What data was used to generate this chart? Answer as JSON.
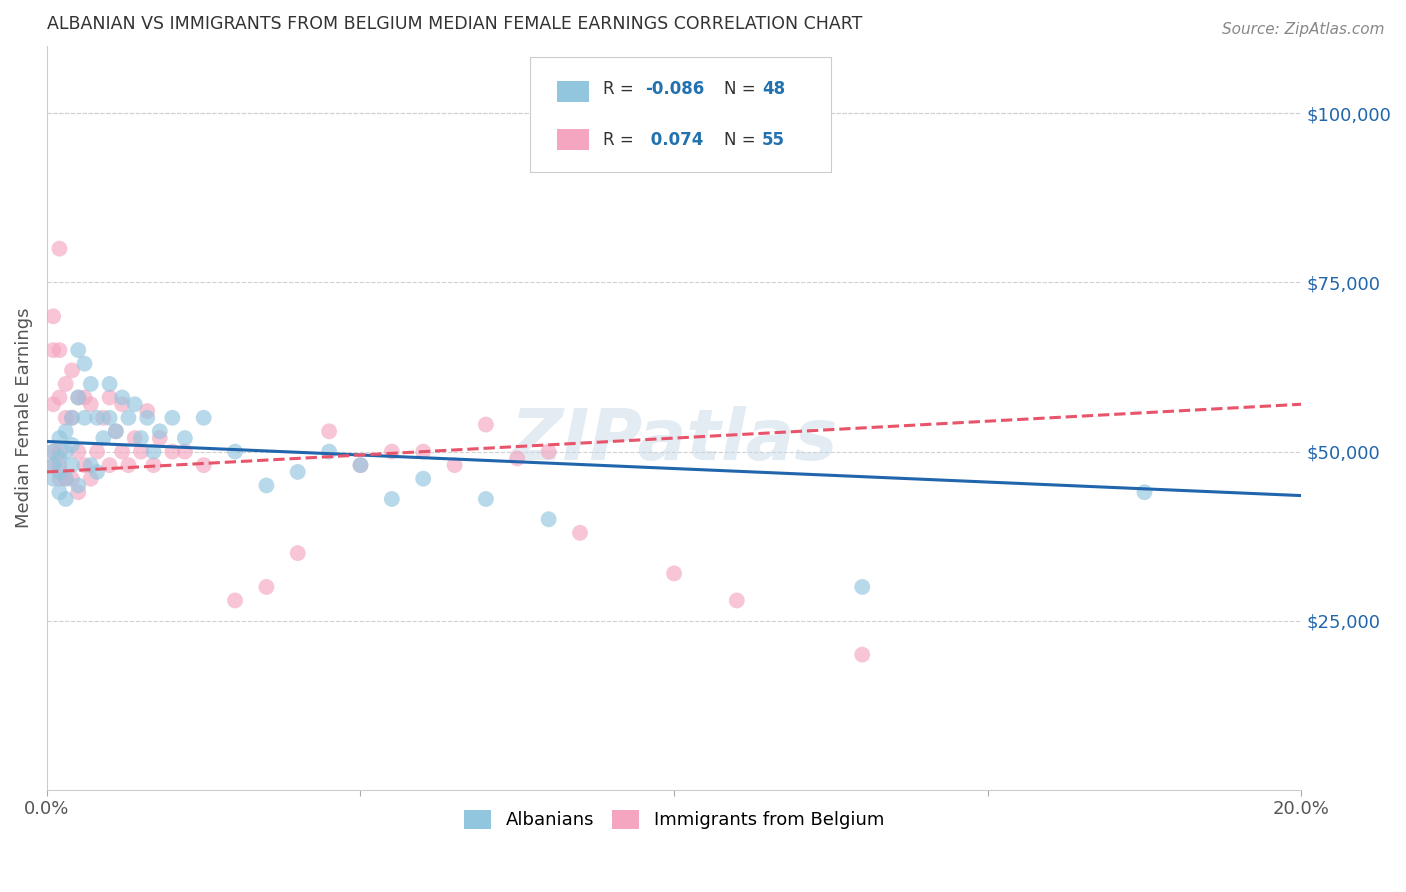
{
  "title": "ALBANIAN VS IMMIGRANTS FROM BELGIUM MEDIAN FEMALE EARNINGS CORRELATION CHART",
  "source": "Source: ZipAtlas.com",
  "ylabel": "Median Female Earnings",
  "xlim": [
    0,
    0.2
  ],
  "ylim": [
    0,
    110000
  ],
  "xticks": [
    0.0,
    0.05,
    0.1,
    0.15,
    0.2
  ],
  "xtick_labels": [
    "0.0%",
    "",
    "",
    "",
    "20.0%"
  ],
  "ytick_labels_right": [
    "$25,000",
    "$50,000",
    "$75,000",
    "$100,000"
  ],
  "ytick_positions_right": [
    25000,
    50000,
    75000,
    100000
  ],
  "legend_labels": [
    "Albanians",
    "Immigrants from Belgium"
  ],
  "legend_R_alb": "-0.086",
  "legend_R_bel": "0.074",
  "legend_N_alb": "48",
  "legend_N_bel": "55",
  "blue_color": "#92c5de",
  "pink_color": "#f4a6c0",
  "blue_line_color": "#2166ac",
  "pink_line_color": "#e8546a",
  "watermark": "ZIPatlas",
  "blue_trend_x0": 0.0,
  "blue_trend_y0": 51500,
  "blue_trend_x1": 0.2,
  "blue_trend_y1": 43500,
  "pink_trend_x0": 0.0,
  "pink_trend_y0": 47000,
  "pink_trend_x1": 0.2,
  "pink_trend_y1": 57000,
  "albanians_x": [
    0.001,
    0.001,
    0.001,
    0.002,
    0.002,
    0.002,
    0.002,
    0.003,
    0.003,
    0.003,
    0.003,
    0.004,
    0.004,
    0.004,
    0.005,
    0.005,
    0.005,
    0.006,
    0.006,
    0.007,
    0.007,
    0.008,
    0.008,
    0.009,
    0.01,
    0.01,
    0.011,
    0.012,
    0.013,
    0.014,
    0.015,
    0.016,
    0.017,
    0.018,
    0.02,
    0.022,
    0.025,
    0.03,
    0.035,
    0.04,
    0.045,
    0.05,
    0.055,
    0.06,
    0.07,
    0.08,
    0.13,
    0.175
  ],
  "albanians_y": [
    50000,
    48000,
    46000,
    52000,
    49000,
    47000,
    44000,
    53000,
    50000,
    46000,
    43000,
    55000,
    51000,
    48000,
    65000,
    58000,
    45000,
    63000,
    55000,
    60000,
    48000,
    55000,
    47000,
    52000,
    60000,
    55000,
    53000,
    58000,
    55000,
    57000,
    52000,
    55000,
    50000,
    53000,
    55000,
    52000,
    55000,
    50000,
    45000,
    47000,
    50000,
    48000,
    43000,
    46000,
    43000,
    40000,
    30000,
    44000
  ],
  "belgium_x": [
    0.001,
    0.001,
    0.001,
    0.001,
    0.001,
    0.002,
    0.002,
    0.002,
    0.002,
    0.002,
    0.002,
    0.003,
    0.003,
    0.003,
    0.004,
    0.004,
    0.004,
    0.005,
    0.005,
    0.005,
    0.006,
    0.006,
    0.007,
    0.007,
    0.008,
    0.009,
    0.01,
    0.01,
    0.011,
    0.012,
    0.012,
    0.013,
    0.014,
    0.015,
    0.016,
    0.017,
    0.018,
    0.02,
    0.022,
    0.025,
    0.03,
    0.035,
    0.04,
    0.045,
    0.05,
    0.055,
    0.06,
    0.065,
    0.07,
    0.075,
    0.08,
    0.085,
    0.1,
    0.11,
    0.13
  ],
  "belgium_y": [
    70000,
    65000,
    57000,
    50000,
    48000,
    80000,
    65000,
    58000,
    50000,
    48000,
    46000,
    60000,
    55000,
    46000,
    62000,
    55000,
    46000,
    58000,
    50000,
    44000,
    58000,
    48000,
    57000,
    46000,
    50000,
    55000,
    58000,
    48000,
    53000,
    57000,
    50000,
    48000,
    52000,
    50000,
    56000,
    48000,
    52000,
    50000,
    50000,
    48000,
    28000,
    30000,
    35000,
    53000,
    48000,
    50000,
    50000,
    48000,
    54000,
    49000,
    50000,
    38000,
    32000,
    28000,
    20000
  ]
}
